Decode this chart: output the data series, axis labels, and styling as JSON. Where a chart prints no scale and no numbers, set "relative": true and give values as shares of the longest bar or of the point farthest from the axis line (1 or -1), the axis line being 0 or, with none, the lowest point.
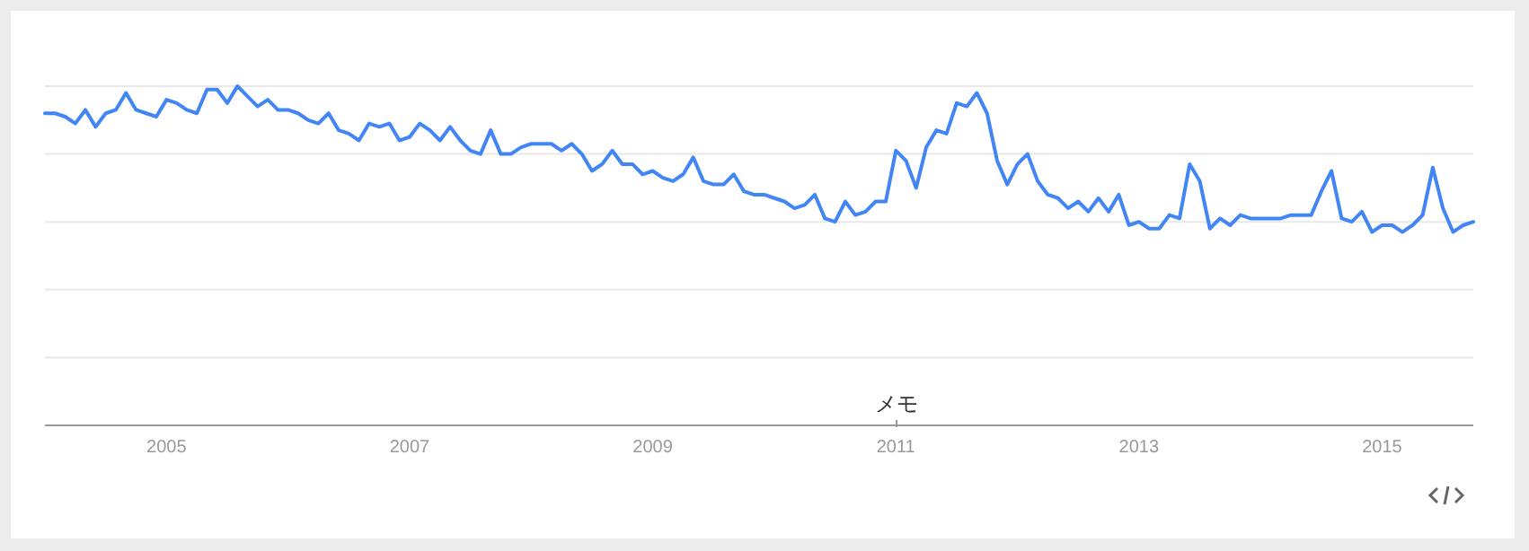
{
  "chart_data": {
    "type": "line",
    "relative": true,
    "grid": "y",
    "x": [
      "2004-01",
      "2004-02",
      "2004-03",
      "2004-04",
      "2004-05",
      "2004-06",
      "2004-07",
      "2004-08",
      "2004-09",
      "2004-10",
      "2004-11",
      "2004-12",
      "2005-01",
      "2005-02",
      "2005-03",
      "2005-04",
      "2005-05",
      "2005-06",
      "2005-07",
      "2005-08",
      "2005-09",
      "2005-10",
      "2005-11",
      "2005-12",
      "2006-01",
      "2006-02",
      "2006-03",
      "2006-04",
      "2006-05",
      "2006-06",
      "2006-07",
      "2006-08",
      "2006-09",
      "2006-10",
      "2006-11",
      "2006-12",
      "2007-01",
      "2007-02",
      "2007-03",
      "2007-04",
      "2007-05",
      "2007-06",
      "2007-07",
      "2007-08",
      "2007-09",
      "2007-10",
      "2007-11",
      "2007-12",
      "2008-01",
      "2008-02",
      "2008-03",
      "2008-04",
      "2008-05",
      "2008-06",
      "2008-07",
      "2008-08",
      "2008-09",
      "2008-10",
      "2008-11",
      "2008-12",
      "2009-01",
      "2009-02",
      "2009-03",
      "2009-04",
      "2009-05",
      "2009-06",
      "2009-07",
      "2009-08",
      "2009-09",
      "2009-10",
      "2009-11",
      "2009-12",
      "2010-01",
      "2010-02",
      "2010-03",
      "2010-04",
      "2010-05",
      "2010-06",
      "2010-07",
      "2010-08",
      "2010-09",
      "2010-10",
      "2010-11",
      "2010-12",
      "2011-01",
      "2011-02",
      "2011-03",
      "2011-04",
      "2011-05",
      "2011-06",
      "2011-07",
      "2011-08",
      "2011-09",
      "2011-10",
      "2011-11",
      "2011-12",
      "2012-01",
      "2012-02",
      "2012-03",
      "2012-04",
      "2012-05",
      "2012-06",
      "2012-07",
      "2012-08",
      "2012-09",
      "2012-10",
      "2012-11",
      "2012-12",
      "2013-01",
      "2013-02",
      "2013-03",
      "2013-04",
      "2013-05",
      "2013-06",
      "2013-07",
      "2013-08",
      "2013-09",
      "2013-10",
      "2013-11",
      "2013-12",
      "2014-01",
      "2014-02",
      "2014-03",
      "2014-04",
      "2014-05",
      "2014-06",
      "2014-07",
      "2014-08",
      "2014-09",
      "2014-10",
      "2014-11",
      "2014-12",
      "2015-01",
      "2015-02",
      "2015-03",
      "2015-04",
      "2015-05",
      "2015-06",
      "2015-07",
      "2015-08",
      "2015-09",
      "2015-10"
    ],
    "series": [
      {
        "color": "#4285f4",
        "values": [
          0.92,
          0.92,
          0.91,
          0.89,
          0.93,
          0.88,
          0.92,
          0.93,
          0.98,
          0.93,
          0.92,
          0.91,
          0.96,
          0.95,
          0.93,
          0.92,
          0.99,
          0.99,
          0.95,
          1.0,
          0.97,
          0.94,
          0.96,
          0.93,
          0.93,
          0.92,
          0.9,
          0.89,
          0.92,
          0.87,
          0.86,
          0.84,
          0.89,
          0.88,
          0.89,
          0.84,
          0.85,
          0.89,
          0.87,
          0.84,
          0.88,
          0.84,
          0.81,
          0.8,
          0.87,
          0.8,
          0.8,
          0.82,
          0.83,
          0.83,
          0.83,
          0.81,
          0.83,
          0.8,
          0.75,
          0.77,
          0.81,
          0.77,
          0.77,
          0.74,
          0.75,
          0.73,
          0.72,
          0.74,
          0.79,
          0.72,
          0.71,
          0.71,
          0.74,
          0.69,
          0.68,
          0.68,
          0.67,
          0.66,
          0.64,
          0.65,
          0.68,
          0.61,
          0.6,
          0.66,
          0.62,
          0.63,
          0.66,
          0.66,
          0.81,
          0.78,
          0.7,
          0.82,
          0.87,
          0.86,
          0.95,
          0.94,
          0.98,
          0.92,
          0.78,
          0.71,
          0.77,
          0.8,
          0.72,
          0.68,
          0.67,
          0.64,
          0.66,
          0.63,
          0.67,
          0.63,
          0.68,
          0.59,
          0.6,
          0.58,
          0.58,
          0.62,
          0.61,
          0.77,
          0.72,
          0.58,
          0.61,
          0.59,
          0.62,
          0.61,
          0.61,
          0.61,
          0.61,
          0.62,
          0.62,
          0.62,
          0.69,
          0.75,
          0.61,
          0.6,
          0.63,
          0.57,
          0.59,
          0.59,
          0.57,
          0.59,
          0.62,
          0.76,
          0.64,
          0.57,
          0.59,
          0.6
        ]
      }
    ],
    "xlim": [
      "2004-01",
      "2015-10"
    ],
    "xticks": [
      "2005",
      "2007",
      "2009",
      "2011",
      "2013",
      "2015"
    ],
    "annotations": [
      "メモ"
    ]
  }
}
